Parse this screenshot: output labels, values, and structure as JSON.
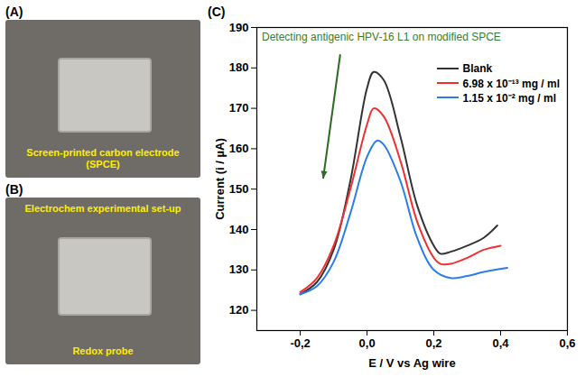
{
  "panels": [
    {
      "letter": "(A)",
      "labels": [
        "Screen-printed carbon electrode (SPCE)"
      ]
    },
    {
      "letter": "(B)",
      "labels": [
        "Electrochem experimental set-up",
        "Redox probe"
      ]
    }
  ],
  "chart_panel": "(C)",
  "chart_data": {
    "type": "line",
    "title": "Detecting antigenic HPV-16 L1 on modified SPCE",
    "x_label": "E / V vs Ag wire",
    "y_label": "Current (i / µA)",
    "xlim": [
      -0.33,
      0.6
    ],
    "xticks": [
      {
        "value": -0.2,
        "label": "-0,2"
      },
      {
        "value": 0,
        "label": "0,0"
      },
      {
        "value": 0.2,
        "label": "0,2"
      },
      {
        "value": 0.4,
        "label": "0,4"
      },
      {
        "value": 0.6,
        "label": "0,6"
      }
    ],
    "ylim": [
      115,
      190
    ],
    "yticks": [
      120,
      130,
      140,
      150,
      160,
      170,
      180,
      190
    ],
    "legend": "upper right",
    "series": [
      {
        "name": "Blank",
        "color": "#333333",
        "x": [
          -0.2,
          -0.15,
          -0.1,
          -0.05,
          0.0,
          0.02,
          0.05,
          0.1,
          0.15,
          0.2,
          0.22,
          0.25,
          0.3,
          0.35,
          0.39
        ],
        "values": [
          124,
          127,
          135,
          152,
          175,
          179,
          177,
          163,
          146,
          136,
          134,
          134.5,
          136,
          138,
          141
        ]
      },
      {
        "name": "6.98 x 10⁻¹³ mg / ml",
        "color": "#f03030",
        "x": [
          -0.2,
          -0.15,
          -0.1,
          -0.05,
          0.0,
          0.02,
          0.05,
          0.1,
          0.15,
          0.2,
          0.22,
          0.25,
          0.3,
          0.35,
          0.4
        ],
        "values": [
          124.5,
          128,
          136,
          150,
          166,
          170,
          168,
          157,
          142,
          133,
          131.5,
          131.5,
          133,
          135,
          136
        ]
      },
      {
        "name": "1.15 x 10⁻² mg / ml",
        "color": "#2b7de9",
        "x": [
          -0.2,
          -0.15,
          -0.1,
          -0.05,
          0.0,
          0.03,
          0.05,
          0.1,
          0.15,
          0.2,
          0.25,
          0.3,
          0.35,
          0.42
        ],
        "values": [
          124,
          126,
          132,
          144,
          158,
          162,
          161,
          152,
          138,
          130,
          128,
          128.5,
          129.5,
          130.5
        ]
      }
    ]
  }
}
